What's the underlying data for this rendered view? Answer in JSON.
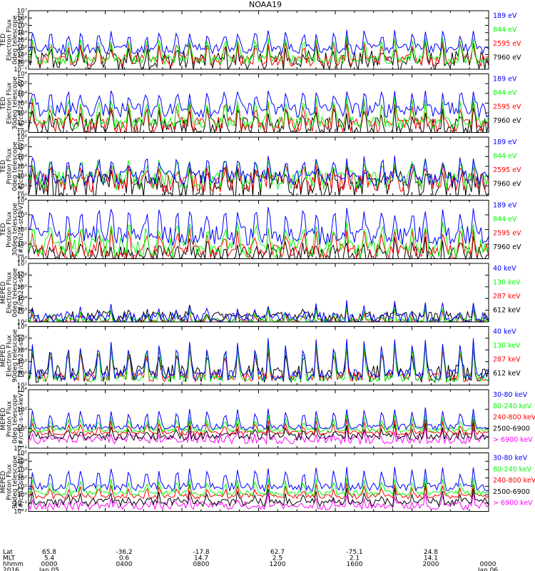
{
  "chart_data": {
    "type": "line",
    "title": "NOAA19",
    "x_ticks": [
      "0000",
      "0400",
      "0800",
      "1200",
      "1600",
      "2000",
      "0000"
    ],
    "ephemeris": {
      "row_labels": [
        "Lat",
        "MLT",
        "hhmm",
        "2016"
      ],
      "lat": [
        "65.8",
        "-36.2",
        "-17.8",
        "62.7",
        "-75.1",
        "24.8"
      ],
      "mlt": [
        "5.4",
        "0.6",
        "14.7",
        "2.5",
        "2.1",
        "14.1"
      ],
      "dates": [
        "Jan 05",
        "Jan 06"
      ]
    },
    "panels": [
      {
        "ylabel": [
          "TED",
          "Electron Flux",
          "0deg telescope",
          "[#/cm2-s-str-eV]"
        ],
        "yticks": [
          "10⁻¹",
          "10⁰",
          "10¹",
          "10²",
          "10³",
          "10⁴",
          "10⁵",
          "10⁶",
          "10⁷"
        ],
        "ylim": [
          -1,
          7
        ],
        "series": [
          {
            "name": "7960 eV",
            "color": "#000000",
            "base": 0.1,
            "peak": 2.3,
            "noise": 1.5,
            "width": 0.45
          },
          {
            "name": "2595 eV",
            "color": "#ff0000",
            "base": 0.2,
            "peak": 3.0,
            "noise": 0.8,
            "width": 0.5
          },
          {
            "name": "844 eV",
            "color": "#00ff00",
            "base": 0.3,
            "peak": 3.4,
            "noise": 0.6,
            "width": 0.55
          },
          {
            "name": "189 eV",
            "color": "#0000ff",
            "base": 1.8,
            "peak": 4.2,
            "noise": 0.7,
            "width": 0.6
          }
        ]
      },
      {
        "ylabel": [
          "TED",
          "Electron Flux",
          "30deg telescope",
          "[#/cm2-s-str-eV]"
        ],
        "yticks": [
          "10⁰",
          "10¹",
          "10²",
          "10³",
          "10⁴",
          "10⁵",
          "10⁶"
        ],
        "ylim": [
          0,
          6
        ],
        "series": [
          {
            "name": "7960 eV",
            "color": "#000000",
            "base": 0.4,
            "peak": 2.5,
            "noise": 1.2,
            "width": 0.45
          },
          {
            "name": "2595 eV",
            "color": "#ff0000",
            "base": 0.8,
            "peak": 3.2,
            "noise": 0.8,
            "width": 0.5
          },
          {
            "name": "844 eV",
            "color": "#00ff00",
            "base": 1.0,
            "peak": 3.6,
            "noise": 0.6,
            "width": 0.55
          },
          {
            "name": "189 eV",
            "color": "#0000ff",
            "base": 2.3,
            "peak": 4.3,
            "noise": 0.8,
            "width": 0.6
          }
        ]
      },
      {
        "ylabel": [
          "TED",
          "Proton Flux",
          "0deg telescope",
          "[#/cm2-s-str-eV]"
        ],
        "yticks": [
          "10⁰",
          "10¹",
          "10²",
          "10³",
          "10⁴",
          "10⁵",
          "10⁶"
        ],
        "ylim": [
          0,
          6
        ],
        "series": [
          {
            "name": "7960 eV",
            "color": "#000000",
            "base": 1.0,
            "peak": 2.5,
            "noise": 1.5,
            "width": 0.55
          },
          {
            "name": "2595 eV",
            "color": "#ff0000",
            "base": 1.3,
            "peak": 3.0,
            "noise": 1.0,
            "width": 0.6
          },
          {
            "name": "844 eV",
            "color": "#00ff00",
            "base": 1.5,
            "peak": 3.5,
            "noise": 1.0,
            "width": 0.7
          },
          {
            "name": "189 eV",
            "color": "#0000ff",
            "base": 1.8,
            "peak": 3.9,
            "noise": 0.8,
            "width": 0.6
          }
        ]
      },
      {
        "ylabel": [
          "TED",
          "Proton Flux",
          "30deg telescope",
          "[#/cm2-s-str-eV]"
        ],
        "yticks": [
          "10⁰",
          "10¹",
          "10²",
          "10³",
          "10⁴"
        ],
        "ylim": [
          0,
          4.6
        ],
        "series": [
          {
            "name": "7960 eV",
            "color": "#000000",
            "base": 0.2,
            "peak": 1.6,
            "noise": 0.8,
            "width": 0.4
          },
          {
            "name": "2595 eV",
            "color": "#ff0000",
            "base": 0.6,
            "peak": 2.4,
            "noise": 0.6,
            "width": 0.5
          },
          {
            "name": "844 eV",
            "color": "#00ff00",
            "base": 0.8,
            "peak": 2.7,
            "noise": 0.8,
            "width": 0.7
          },
          {
            "name": "189 eV",
            "color": "#0000ff",
            "base": 1.8,
            "peak": 3.8,
            "noise": 0.8,
            "width": 0.7
          }
        ]
      },
      {
        "ylabel": [
          "MEPED",
          "Electron Flux",
          "0deg telescope",
          "[#/cm2-s-str]"
        ],
        "yticks": [
          "10²",
          "10³",
          "10⁴",
          "10⁵",
          "10⁶",
          "10⁷"
        ],
        "ylim": [
          2,
          7
        ],
        "series": [
          {
            "name": "612 keV",
            "color": "#000000",
            "base": 2.4,
            "peak": 3.5,
            "noise": 0.5,
            "width": 0.3
          },
          {
            "name": "287 keV",
            "color": "#ff0000",
            "base": 2.05,
            "peak": 3.2,
            "noise": 0.2,
            "width": 0.3
          },
          {
            "name": "130 keV",
            "color": "#00ff00",
            "base": 2.1,
            "peak": 3.4,
            "noise": 0.2,
            "width": 0.3
          },
          {
            "name": "40 keV",
            "color": "#0000ff",
            "base": 2.3,
            "peak": 3.8,
            "noise": 0.5,
            "width": 0.3
          }
        ]
      },
      {
        "ylabel": [
          "MEPED",
          "Electron Flux",
          "90deg telescope",
          "[#/cm2-s-str]"
        ],
        "yticks": [
          "10¹",
          "10²",
          "10³",
          "10⁴",
          "10⁵",
          "10⁶"
        ],
        "ylim": [
          1,
          6.2
        ],
        "series": [
          {
            "name": "612 keV",
            "color": "#000000",
            "base": 2.0,
            "peak": 4.3,
            "noise": 0.8,
            "width": 0.5
          },
          {
            "name": "287 keV",
            "color": "#ff0000",
            "base": 1.7,
            "peak": 4.6,
            "noise": 0.4,
            "width": 0.5
          },
          {
            "name": "130 keV",
            "color": "#00ff00",
            "base": 1.6,
            "peak": 4.9,
            "noise": 0.3,
            "width": 0.5
          },
          {
            "name": "40 keV",
            "color": "#0000ff",
            "base": 1.9,
            "peak": 5.2,
            "noise": 0.5,
            "width": 0.5
          }
        ]
      },
      {
        "ylabel": [
          "MEPED",
          "Proton Flux",
          "0deg telescope",
          "[#/cm2-s-str-keV]"
        ],
        "yticks": [
          "10⁻²",
          "10⁰",
          "10²",
          "10⁴"
        ],
        "ylim": [
          -2.5,
          5.5
        ],
        "series": [
          {
            "name": "> 6900 keV",
            "color": "#ff00ff",
            "base": -1.3,
            "peak": 0.8,
            "noise": 0.6,
            "width": 0.2
          },
          {
            "name": "2500-6900",
            "color": "#000000",
            "base": -0.9,
            "peak": 1.0,
            "noise": 0.5,
            "width": 0.3
          },
          {
            "name": "240-800 keV",
            "color": "#ff0000",
            "base": -0.4,
            "peak": 1.6,
            "noise": 0.3,
            "width": 0.35
          },
          {
            "name": "80-240 keV",
            "color": "#00ff00",
            "base": 0.0,
            "peak": 2.2,
            "noise": 0.3,
            "width": 0.4
          },
          {
            "name": "30-80 keV",
            "color": "#0000ff",
            "base": 0.4,
            "peak": 3.0,
            "noise": 0.4,
            "width": 0.5
          }
        ]
      },
      {
        "ylabel": [
          "MEPED",
          "Proton Flux",
          "90deg telescope",
          "[#/cm2-s-str-keV]"
        ],
        "yticks": [
          "10⁻²",
          "10⁻¹",
          "10⁰",
          "10¹",
          "10²",
          "10³",
          "10⁴",
          "10⁵"
        ],
        "ylim": [
          -2,
          5
        ],
        "series": [
          {
            "name": "> 6900 keV",
            "color": "#ff00ff",
            "base": -1.3,
            "peak": 0.5,
            "noise": 0.5,
            "width": 0.2
          },
          {
            "name": "2500-6900",
            "color": "#000000",
            "base": -0.9,
            "peak": 0.9,
            "noise": 0.5,
            "width": 0.3
          },
          {
            "name": "240-800 keV",
            "color": "#ff0000",
            "base": -0.2,
            "peak": 1.5,
            "noise": 0.3,
            "width": 0.35
          },
          {
            "name": "80-240 keV",
            "color": "#00ff00",
            "base": 0.2,
            "peak": 2.2,
            "noise": 0.3,
            "width": 0.4
          },
          {
            "name": "30-80 keV",
            "color": "#0000ff",
            "base": 0.9,
            "peak": 3.3,
            "noise": 0.5,
            "width": 0.5
          }
        ]
      }
    ]
  }
}
